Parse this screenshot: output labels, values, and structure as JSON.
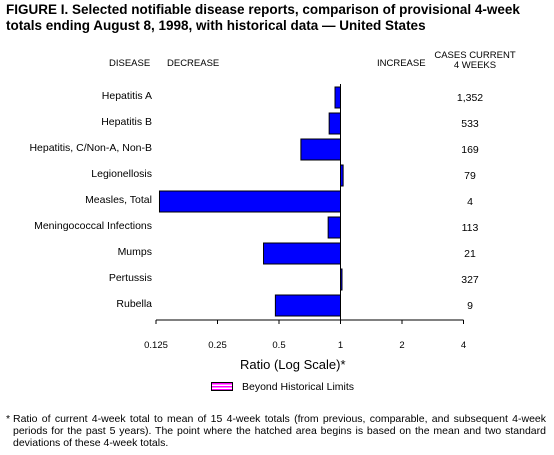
{
  "title": "FIGURE I. Selected notifiable disease reports, comparison of provisional 4-week totals ending August 8, 1998, with historical data — United States",
  "headers": {
    "disease": "DISEASE",
    "decrease": "DECREASE",
    "increase": "INCREASE",
    "cases_line1": "CASES CURRENT",
    "cases_line2": "4 WEEKS"
  },
  "legend": {
    "label": "Beyond Historical Limits",
    "color": "#ff00ff"
  },
  "footnote": {
    "mark": "*",
    "text": "Ratio of current 4-week total to mean of 15 4-week totals (from previous, comparable, and subsequent 4-week periods for the past 5 years). The point where the hatched area begins is based on the mean and two standard deviations of these 4-week totals."
  },
  "colors": {
    "bar": "#0000ff",
    "baseline": "#000000"
  },
  "chart_data": {
    "type": "bar",
    "orientation": "horizontal",
    "title": "FIGURE I. Selected notifiable disease reports, comparison of provisional 4-week totals ending August 8, 1998, with historical data — United States",
    "xlabel": "Ratio (Log Scale)*",
    "xscale": "log2",
    "xlim": [
      0.125,
      4
    ],
    "xticks": [
      "0.125",
      "0.25",
      "0.5",
      "1",
      "2",
      "4"
    ],
    "xtick_values": [
      0.125,
      0.25,
      0.5,
      1,
      2,
      4
    ],
    "baseline": 1,
    "categories": [
      "Hepatitis A",
      "Hepatitis B",
      "Hepatitis, C/Non-A, Non-B",
      "Legionellosis",
      "Measles, Total",
      "Meningococcal Infections",
      "Mumps",
      "Pertussis",
      "Rubella"
    ],
    "values": [
      0.94,
      0.88,
      0.64,
      1.03,
      0.13,
      0.87,
      0.42,
      1.01,
      0.48
    ],
    "cases_current_4_weeks": [
      "1,352",
      "533",
      "169",
      "79",
      "4",
      "113",
      "21",
      "327",
      "9"
    ],
    "grid": false,
    "legend_position": "bottom"
  }
}
